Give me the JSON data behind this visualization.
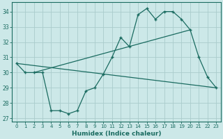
{
  "xlabel": "Humidex (Indice chaleur)",
  "ylabel": "",
  "bg_color": "#cce8e8",
  "grid_color": "#aacccc",
  "line_color": "#1a6b60",
  "xlim": [
    -0.5,
    23.5
  ],
  "ylim": [
    26.8,
    34.6
  ],
  "yticks": [
    27,
    28,
    29,
    30,
    31,
    32,
    33,
    34
  ],
  "xticks": [
    0,
    1,
    2,
    3,
    4,
    5,
    6,
    7,
    8,
    9,
    10,
    11,
    12,
    13,
    14,
    15,
    16,
    17,
    18,
    19,
    20,
    21,
    22,
    23
  ],
  "line1_x": [
    0,
    1,
    2,
    3,
    4,
    5,
    6,
    7,
    8,
    9,
    10,
    11,
    12,
    13,
    14,
    15,
    16,
    17,
    18,
    19,
    20,
    21,
    22,
    23
  ],
  "line1_y": [
    30.6,
    30.0,
    30.0,
    30.0,
    27.5,
    27.5,
    27.3,
    27.5,
    28.8,
    29.0,
    29.9,
    31.0,
    32.3,
    31.7,
    33.8,
    34.2,
    33.5,
    34.0,
    34.0,
    33.5,
    32.8,
    31.0,
    29.7,
    29.0
  ],
  "line2_x": [
    0,
    23
  ],
  "line2_y": [
    30.6,
    29.0
  ],
  "line3_x": [
    2,
    20
  ],
  "line3_y": [
    30.0,
    32.8
  ]
}
